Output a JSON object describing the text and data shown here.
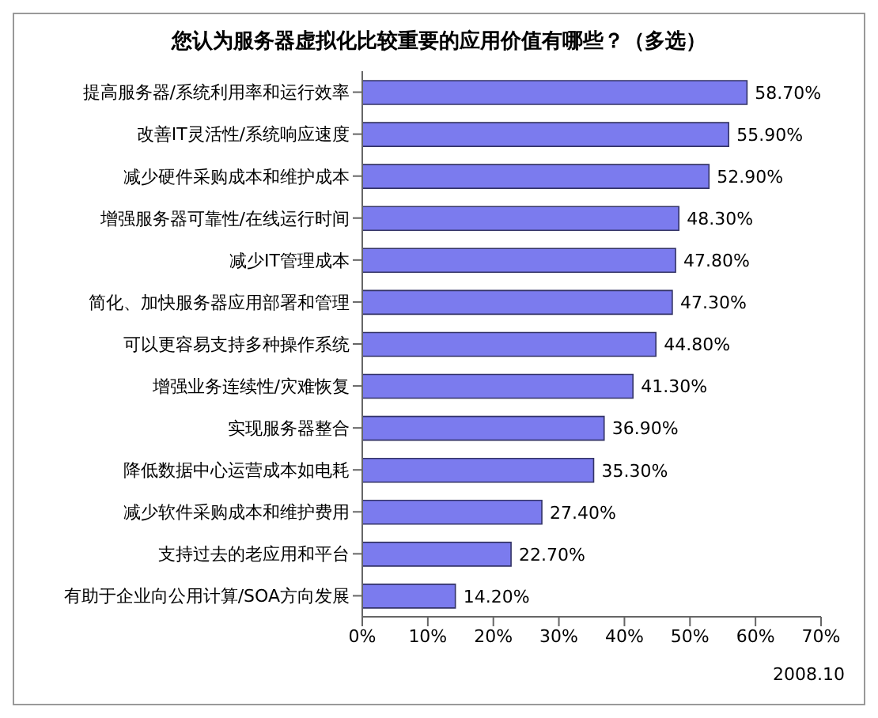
{
  "chart_data": {
    "type": "bar",
    "orientation": "horizontal",
    "title": "您认为服务器虚拟化比较重要的应用价值有哪些？（多选）",
    "categories": [
      "提高服务器/系统利用率和运行效率",
      "改善IT灵活性/系统响应速度",
      "减少硬件采购成本和维护成本",
      "增强服务器可靠性/在线运行时间",
      "减少IT管理成本",
      "简化、加快服务器应用部署和管理",
      "可以更容易支持多种操作系统",
      "增强业务连续性/灾难恢复",
      "实现服务器整合",
      "降低数据中心运营成本如电耗",
      "减少软件采购成本和维护费用",
      "支持过去的老应用和平台",
      "有助于企业向公用计算/SOA方向发展"
    ],
    "values": [
      58.7,
      55.9,
      52.9,
      48.3,
      47.8,
      47.3,
      44.8,
      41.3,
      36.9,
      35.3,
      27.4,
      22.7,
      14.2
    ],
    "value_labels": [
      "58.70%",
      "55.90%",
      "52.90%",
      "48.30%",
      "47.80%",
      "47.30%",
      "44.80%",
      "41.30%",
      "36.90%",
      "35.30%",
      "27.40%",
      "22.70%",
      "14.20%"
    ],
    "color": "#7b7bee",
    "xlim": [
      0,
      70
    ],
    "xticks": [
      {
        "value": 0,
        "label": "0%"
      },
      {
        "value": 10,
        "label": "10%"
      },
      {
        "value": 20,
        "label": "20%"
      },
      {
        "value": 30,
        "label": "30%"
      },
      {
        "value": 40,
        "label": "40%"
      },
      {
        "value": 50,
        "label": "50%"
      },
      {
        "value": 60,
        "label": "60%"
      },
      {
        "value": 70,
        "label": "70%"
      }
    ],
    "grid": false,
    "legend": false,
    "annotations": [
      "2008.10"
    ]
  }
}
